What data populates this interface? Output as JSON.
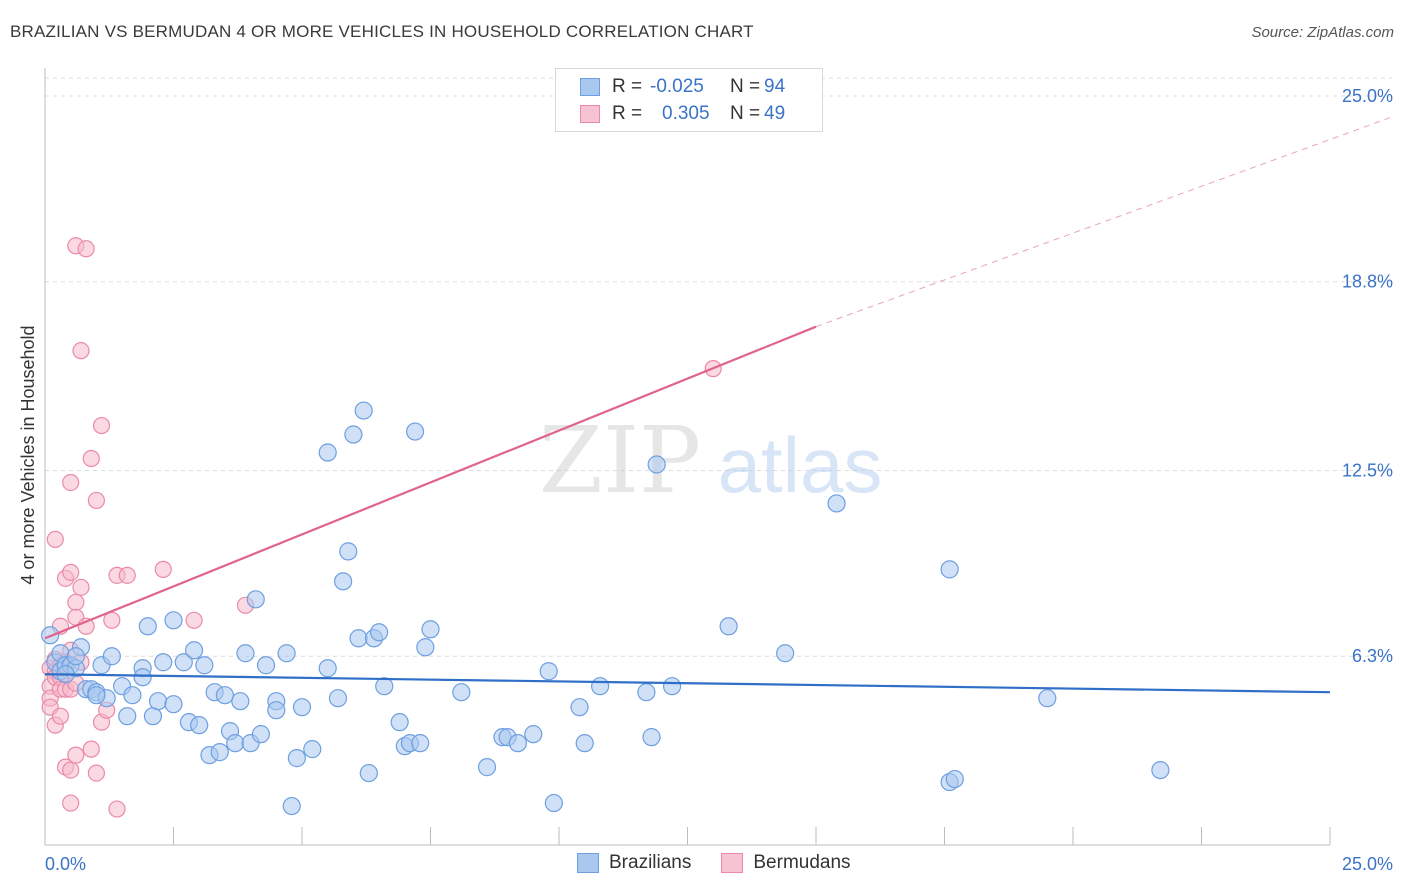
{
  "header": {
    "title": "BRAZILIAN VS BERMUDAN 4 OR MORE VEHICLES IN HOUSEHOLD CORRELATION CHART",
    "source": "Source: ZipAtlas.com"
  },
  "legend": {
    "rows": [
      {
        "r_label": "R =",
        "r_value": "-0.025",
        "n_label": "N =",
        "n_value": "94"
      },
      {
        "r_label": "R =",
        "r_value": "0.305",
        "n_label": "N =",
        "n_value": "49"
      }
    ],
    "bottom": [
      "Brazilians",
      "Bermudans"
    ]
  },
  "watermark": {
    "zip": "ZIP",
    "atlas": "atlas"
  },
  "colors": {
    "blue_fill": "#a9c8f0",
    "blue_stroke": "#6e9fe0",
    "blue_line": "#2f6fc7",
    "pink_fill": "#f6b9cb",
    "pink_stroke": "#eb8aa8",
    "pink_line": "#e0638c",
    "grid": "#dcdcdc",
    "tick_label": "#3a73c8"
  },
  "chart_data": {
    "type": "scatter",
    "title": "BRAZILIAN VS BERMUDAN 4 OR MORE VEHICLES IN HOUSEHOLD CORRELATION CHART",
    "xlabel": "",
    "ylabel": "4 or more Vehicles in Household",
    "xlim": [
      0,
      25
    ],
    "ylim": [
      0,
      25.6
    ],
    "x_tick_labels": [
      "0.0%",
      "25.0%"
    ],
    "y_ticks": [
      6.3,
      12.5,
      18.8,
      25.0
    ],
    "y_tick_labels": [
      "6.3%",
      "12.5%",
      "18.8%",
      "25.0%"
    ],
    "series": [
      {
        "name": "Brazilians",
        "r": -0.025,
        "n": 94,
        "trend": {
          "x": [
            0,
            25
          ],
          "y": [
            5.7,
            5.1
          ]
        },
        "points": [
          [
            0.2,
            6.1
          ],
          [
            0.3,
            5.8
          ],
          [
            0.3,
            6.4
          ],
          [
            0.4,
            6.0
          ],
          [
            0.5,
            6.0
          ],
          [
            0.6,
            5.9
          ],
          [
            0.7,
            6.6
          ],
          [
            0.8,
            5.2
          ],
          [
            0.9,
            5.2
          ],
          [
            1.0,
            5.1
          ],
          [
            1.1,
            6.0
          ],
          [
            1.2,
            4.9
          ],
          [
            1.3,
            6.3
          ],
          [
            1.5,
            5.3
          ],
          [
            1.6,
            4.3
          ],
          [
            1.7,
            5.0
          ],
          [
            1.9,
            5.9
          ],
          [
            1.9,
            5.6
          ],
          [
            2.0,
            7.3
          ],
          [
            2.1,
            4.3
          ],
          [
            2.2,
            4.8
          ],
          [
            2.3,
            6.1
          ],
          [
            2.5,
            4.7
          ],
          [
            2.5,
            7.5
          ],
          [
            2.7,
            6.1
          ],
          [
            2.8,
            4.1
          ],
          [
            2.9,
            6.5
          ],
          [
            3.0,
            4.0
          ],
          [
            3.1,
            6.0
          ],
          [
            3.2,
            3.0
          ],
          [
            3.3,
            5.1
          ],
          [
            3.4,
            3.1
          ],
          [
            3.5,
            5.0
          ],
          [
            3.6,
            3.8
          ],
          [
            3.7,
            3.4
          ],
          [
            3.8,
            4.8
          ],
          [
            3.9,
            6.4
          ],
          [
            4.0,
            3.4
          ],
          [
            4.1,
            8.2
          ],
          [
            4.2,
            3.7
          ],
          [
            4.3,
            6.0
          ],
          [
            4.5,
            4.8
          ],
          [
            4.5,
            4.5
          ],
          [
            4.7,
            6.4
          ],
          [
            4.8,
            1.3
          ],
          [
            4.9,
            2.9
          ],
          [
            5.0,
            4.6
          ],
          [
            5.2,
            3.2
          ],
          [
            5.5,
            5.9
          ],
          [
            5.5,
            13.1
          ],
          [
            5.7,
            4.9
          ],
          [
            5.8,
            8.8
          ],
          [
            5.9,
            9.8
          ],
          [
            6.0,
            13.7
          ],
          [
            6.1,
            6.9
          ],
          [
            6.2,
            14.5
          ],
          [
            6.3,
            2.4
          ],
          [
            6.4,
            6.9
          ],
          [
            6.5,
            7.1
          ],
          [
            6.6,
            5.3
          ],
          [
            6.9,
            4.1
          ],
          [
            7.0,
            3.3
          ],
          [
            7.1,
            3.4
          ],
          [
            7.2,
            13.8
          ],
          [
            7.3,
            3.4
          ],
          [
            7.4,
            6.6
          ],
          [
            7.5,
            7.2
          ],
          [
            8.1,
            5.1
          ],
          [
            8.6,
            2.6
          ],
          [
            8.9,
            3.6
          ],
          [
            9.0,
            3.6
          ],
          [
            9.2,
            3.4
          ],
          [
            9.5,
            3.7
          ],
          [
            9.8,
            5.8
          ],
          [
            9.9,
            1.4
          ],
          [
            10.4,
            4.6
          ],
          [
            10.5,
            3.4
          ],
          [
            10.8,
            5.3
          ],
          [
            11.7,
            5.1
          ],
          [
            11.8,
            3.6
          ],
          [
            11.9,
            12.7
          ],
          [
            12.2,
            5.3
          ],
          [
            13.3,
            7.3
          ],
          [
            14.4,
            6.4
          ],
          [
            15.4,
            11.4
          ],
          [
            17.6,
            2.1
          ],
          [
            17.7,
            2.2
          ],
          [
            17.6,
            9.2
          ],
          [
            19.5,
            4.9
          ],
          [
            21.7,
            2.5
          ],
          [
            0.1,
            7.0
          ],
          [
            0.4,
            5.7
          ],
          [
            1.0,
            5.0
          ],
          [
            0.6,
            6.3
          ]
        ]
      },
      {
        "name": "Bermudans",
        "r": 0.305,
        "n": 49,
        "trend": {
          "x": [
            0,
            15
          ],
          "y": [
            6.9,
            17.3
          ]
        },
        "trend_ext": {
          "x": [
            15,
            25
          ],
          "y": [
            17.3,
            24.3
          ]
        },
        "points": [
          [
            0.1,
            5.9
          ],
          [
            0.1,
            5.3
          ],
          [
            0.1,
            4.9
          ],
          [
            0.1,
            4.6
          ],
          [
            0.2,
            6.2
          ],
          [
            0.2,
            5.8
          ],
          [
            0.2,
            5.6
          ],
          [
            0.2,
            4.0
          ],
          [
            0.2,
            10.2
          ],
          [
            0.3,
            6.0
          ],
          [
            0.3,
            5.6
          ],
          [
            0.3,
            5.2
          ],
          [
            0.3,
            4.3
          ],
          [
            0.3,
            7.3
          ],
          [
            0.4,
            6.1
          ],
          [
            0.4,
            5.2
          ],
          [
            0.4,
            8.9
          ],
          [
            0.4,
            2.6
          ],
          [
            0.5,
            12.1
          ],
          [
            0.5,
            9.1
          ],
          [
            0.5,
            6.5
          ],
          [
            0.5,
            5.2
          ],
          [
            0.5,
            2.5
          ],
          [
            0.5,
            1.4
          ],
          [
            0.6,
            8.1
          ],
          [
            0.6,
            7.6
          ],
          [
            0.6,
            5.4
          ],
          [
            0.6,
            3.0
          ],
          [
            0.6,
            20.0
          ],
          [
            0.7,
            8.6
          ],
          [
            0.7,
            6.1
          ],
          [
            0.7,
            16.5
          ],
          [
            0.8,
            19.9
          ],
          [
            0.8,
            7.3
          ],
          [
            0.9,
            3.2
          ],
          [
            0.9,
            12.9
          ],
          [
            1.0,
            11.5
          ],
          [
            1.0,
            2.4
          ],
          [
            1.1,
            14.0
          ],
          [
            1.1,
            4.1
          ],
          [
            1.2,
            4.5
          ],
          [
            1.3,
            7.5
          ],
          [
            1.4,
            9.0
          ],
          [
            1.4,
            1.2
          ],
          [
            1.6,
            9.0
          ],
          [
            2.3,
            9.2
          ],
          [
            2.9,
            7.5
          ],
          [
            3.9,
            8.0
          ],
          [
            13.0,
            15.9
          ]
        ]
      }
    ]
  }
}
